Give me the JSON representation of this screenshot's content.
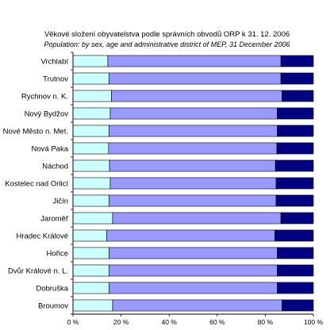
{
  "chart_data": {
    "type": "bar",
    "orientation": "horizontal",
    "stacked": "percent",
    "title": "Věkové složení obyvatelstva podle správních obvodů ORP k 31. 12. 2006",
    "subtitle": "Population: by sex, age and administrative district of MEP, 31 December 2006",
    "categories": [
      "Vrchlabí",
      "Trutnov",
      "Rychnov n. K.",
      "Nový Bydžov",
      "Nové Město n. Met.",
      "Nová Paka",
      "Náchod",
      "Kostelec nad Orlicí",
      "Jičín",
      "Jaroměř",
      "Hradec Králové",
      "Hořice",
      "Dvůr Králové n. L.",
      "Dobruška",
      "Broumov"
    ],
    "series": [
      {
        "values": [
          14.5,
          15.0,
          16.0,
          15.5,
          15.0,
          14.8,
          15.2,
          15.5,
          15.0,
          16.5,
          14.0,
          15.0,
          15.0,
          15.0,
          16.5
        ],
        "color": "#ccffff"
      },
      {
        "values": [
          72.0,
          71.5,
          71.0,
          69.5,
          70.0,
          70.0,
          69.0,
          69.0,
          69.5,
          70.0,
          70.0,
          70.0,
          70.0,
          70.0,
          70.5
        ],
        "color": "#9999ff"
      },
      {
        "values": [
          13.5,
          13.5,
          13.0,
          15.0,
          15.0,
          15.2,
          15.8,
          15.5,
          15.5,
          13.5,
          16.0,
          15.0,
          15.0,
          15.0,
          13.0
        ],
        "color": "#000080"
      }
    ],
    "x_ticks": [
      "0 %",
      "20 %",
      "40 %",
      "60 %",
      "80 %",
      "100 %"
    ],
    "xlim": [
      0,
      100
    ],
    "grid": false,
    "legend": "none"
  }
}
